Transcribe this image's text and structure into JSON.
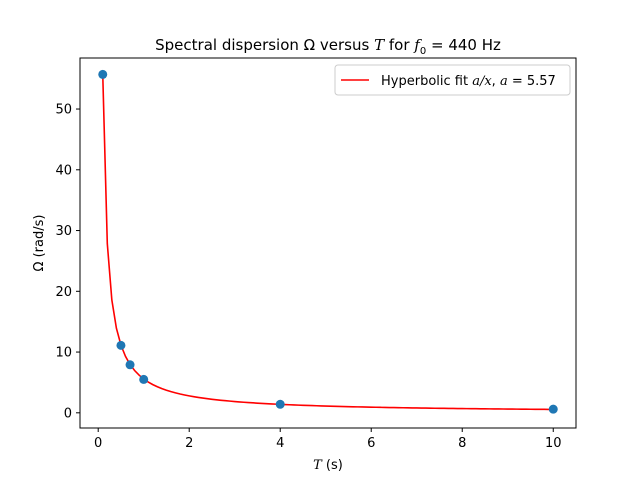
{
  "chart_data": {
    "type": "scatter",
    "title": {
      "prefix": "Spectral dispersion Ω versus ",
      "var": "T",
      "mid": " for ",
      "f_base": "f",
      "f_sub": "0",
      "suffix": " = 440 Hz"
    },
    "xlabel": {
      "var": "T",
      "unit": " (s)"
    },
    "ylabel": "Ω (rad/s)",
    "xlim": [
      -0.4,
      10.5
    ],
    "ylim": [
      -2.5,
      58.4
    ],
    "xticks": [
      0,
      2,
      4,
      6,
      8,
      10
    ],
    "xtick_labels": [
      "0",
      "2",
      "4",
      "6",
      "8",
      "10"
    ],
    "yticks": [
      0,
      10,
      20,
      30,
      40,
      50
    ],
    "ytick_labels": [
      "0",
      "10",
      "20",
      "30",
      "40",
      "50"
    ],
    "grid": false,
    "legend_position": "top-right",
    "series": [
      {
        "kind": "points",
        "x": [
          0.1,
          0.5,
          0.7,
          1.0,
          4.0,
          10.0
        ],
        "y": [
          55.7,
          11.1,
          7.9,
          5.5,
          1.4,
          0.6
        ],
        "color": "#1f77b4"
      },
      {
        "kind": "fit-line",
        "function": "a/x",
        "a": 5.57,
        "x_range": [
          0.1,
          10.0
        ],
        "color": "#ff0000",
        "name_text": "Hyperbolic fit ",
        "name_expr": "a/x",
        "name_sep": ", ",
        "name_param": "a",
        "name_value": " = 5.57"
      }
    ]
  }
}
